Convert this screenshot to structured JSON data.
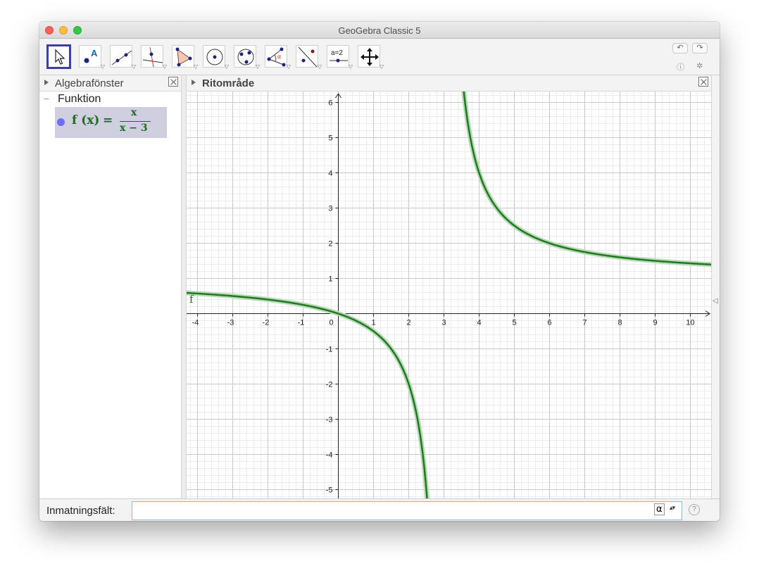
{
  "window": {
    "title": "GeoGebra Classic 5"
  },
  "toolbar": {
    "tools": [
      "move",
      "point",
      "line",
      "perpendicular-line",
      "polygon",
      "circle-center-point",
      "circle-three-points",
      "angle",
      "reflect",
      "slider",
      "move-graphics-view"
    ],
    "slider_label": "a=2",
    "undo_icon": "undo-icon",
    "redo_icon": "redo-icon",
    "help_icon": "help-icon",
    "settings_icon": "gear-icon"
  },
  "algebra": {
    "header": "Algebrafönster",
    "group_label": "Funktion",
    "collapse_symbol": "−",
    "function": {
      "lhs": "f (x)",
      "eq": "=",
      "numerator": "x",
      "denominator": "x − 3"
    }
  },
  "graphics": {
    "header": "Ritområde",
    "curve_label": "f",
    "curve_color": "#1e7a1e",
    "highlight_color": "#b9d9b9"
  },
  "input": {
    "label": "Inmatningsfält:",
    "value": "",
    "alpha_symbol": "α",
    "spinner_symbol": "▴▾",
    "help_symbol": "?"
  },
  "chart_data": {
    "type": "line",
    "function": "f(x) = x/(x−3)",
    "xlim": [
      -4.3,
      10.6
    ],
    "ylim": [
      -5.3,
      6.3
    ],
    "x_ticks": [
      -4,
      -3,
      -2,
      -1,
      0,
      1,
      2,
      3,
      4,
      5,
      6,
      7,
      8,
      9,
      10
    ],
    "y_ticks": [
      -5,
      -4,
      -3,
      -2,
      -1,
      1,
      2,
      3,
      4,
      5,
      6
    ],
    "grid": true,
    "series": [
      {
        "name": "f",
        "asymptote_x": 3
      }
    ]
  }
}
